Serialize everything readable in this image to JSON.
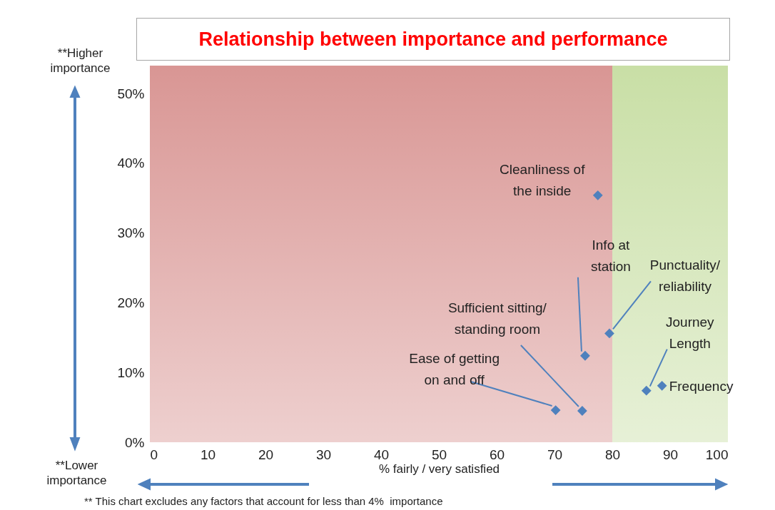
{
  "chart_data": {
    "type": "scatter",
    "title": "Relationship between importance and performance",
    "xlabel": "% fairly / very satisfied",
    "x": [
      77.5,
      75.3,
      79.5,
      74.8,
      70.2,
      85.9,
      88.6
    ],
    "series": [
      {
        "color": "#4f81bd",
        "values": [
          35.4,
          12.4,
          15.6,
          4.5,
          4.6,
          7.4,
          8.1
        ]
      }
    ],
    "marker": "diamond",
    "grid": false,
    "xlim": [
      0,
      100
    ],
    "xticks": [
      0,
      10,
      20,
      30,
      40,
      50,
      60,
      70,
      80,
      90,
      100
    ],
    "ylim": [
      0,
      54
    ],
    "yticks": [
      {
        "value": 0,
        "label": "0%"
      },
      {
        "value": 10,
        "label": "10%"
      },
      {
        "value": 20,
        "label": "20%"
      },
      {
        "value": 30,
        "label": "30%"
      },
      {
        "value": 40,
        "label": "40%"
      },
      {
        "value": 50,
        "label": "50%"
      }
    ],
    "bands": [
      {
        "axis": "x",
        "from": 0,
        "to": 80,
        "color": "#d99694"
      },
      {
        "axis": "x",
        "from": 80,
        "to": 100,
        "color": "#c9dfa6"
      }
    ],
    "annotations": [
      {
        "text": "Cleanliness of\nthe inside",
        "x": 77.5,
        "y": 35.4
      },
      {
        "text": "Info at\nstation",
        "x": 75.3,
        "y": 12.4
      },
      {
        "text": "Punctuality/\nreliability",
        "x": 79.5,
        "y": 15.6
      },
      {
        "text": "Sufficient sitting/\nstanding room",
        "x": 74.8,
        "y": 4.5
      },
      {
        "text": "Ease of getting\non and off",
        "x": 70.2,
        "y": 4.6
      },
      {
        "text": "Journey\nLength",
        "x": 85.9,
        "y": 7.4
      },
      {
        "text": "Frequency",
        "x": 88.6,
        "y": 8.1
      },
      "**Higher importance",
      "**Lower importance",
      "** This chart excludes any factors that account for less than 4%  importance"
    ]
  }
}
